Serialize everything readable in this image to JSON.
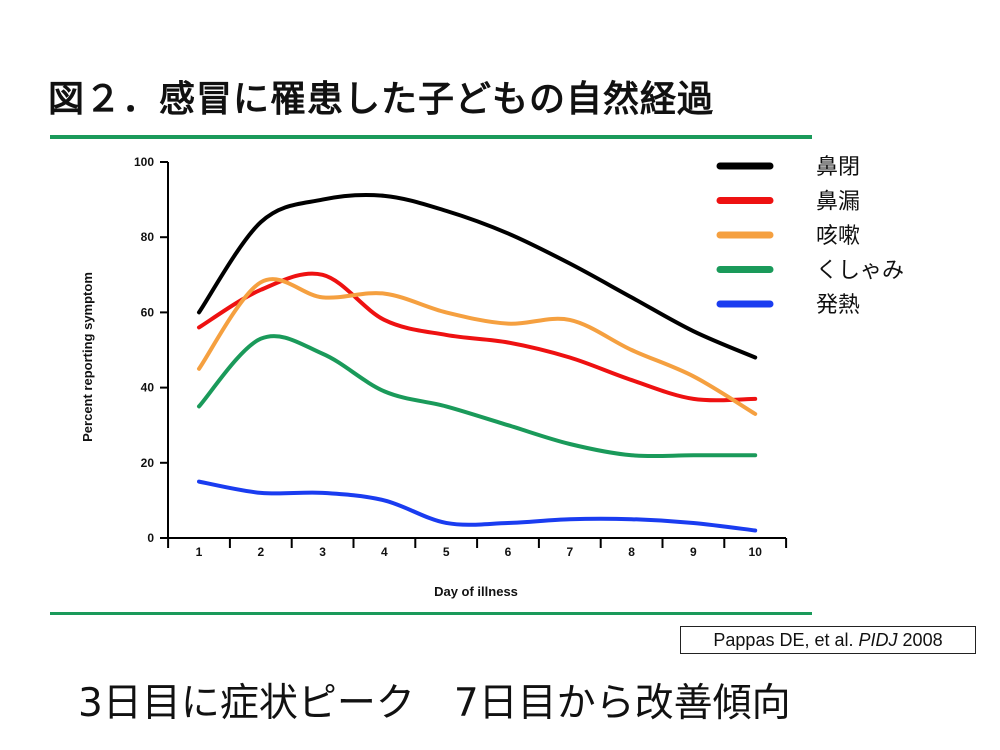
{
  "slide": {
    "title": "図２．感冒に罹患した子どもの自然経過",
    "citation": {
      "authors": "Pappas DE, et al.",
      "journal": "PIDJ",
      "year": "2008"
    },
    "conclusion": "3日目に症状ピーク　7日目から改善傾向"
  },
  "chart_data": {
    "type": "line",
    "title": "",
    "xlabel": "Day of illness",
    "ylabel": "Percent reporting symptom",
    "x": [
      1,
      2,
      3,
      4,
      5,
      6,
      7,
      8,
      9,
      10
    ],
    "xlim": [
      0.5,
      10.5
    ],
    "ylim": [
      0,
      100
    ],
    "yticks": [
      0,
      20,
      40,
      60,
      80,
      100
    ],
    "grid": false,
    "legend_position": "top-right",
    "series": [
      {
        "name": "鼻閉",
        "color": "#000000",
        "values": [
          60,
          84,
          90,
          91,
          87,
          81,
          73,
          64,
          55,
          48
        ]
      },
      {
        "name": "鼻漏",
        "color": "#ee1111",
        "values": [
          56,
          66,
          70,
          58,
          54,
          52,
          48,
          42,
          37,
          37
        ]
      },
      {
        "name": "咳嗽",
        "color": "#f5a040",
        "values": [
          45,
          68,
          64,
          65,
          60,
          57,
          58,
          50,
          43,
          33
        ]
      },
      {
        "name": "くしゃみ",
        "color": "#1a9a5a",
        "values": [
          35,
          53,
          49,
          39,
          35,
          30,
          25,
          22,
          22,
          22
        ]
      },
      {
        "name": "発熱",
        "color": "#1a3cf0",
        "values": [
          15,
          12,
          12,
          10,
          4,
          4,
          5,
          5,
          4,
          2
        ]
      }
    ]
  }
}
